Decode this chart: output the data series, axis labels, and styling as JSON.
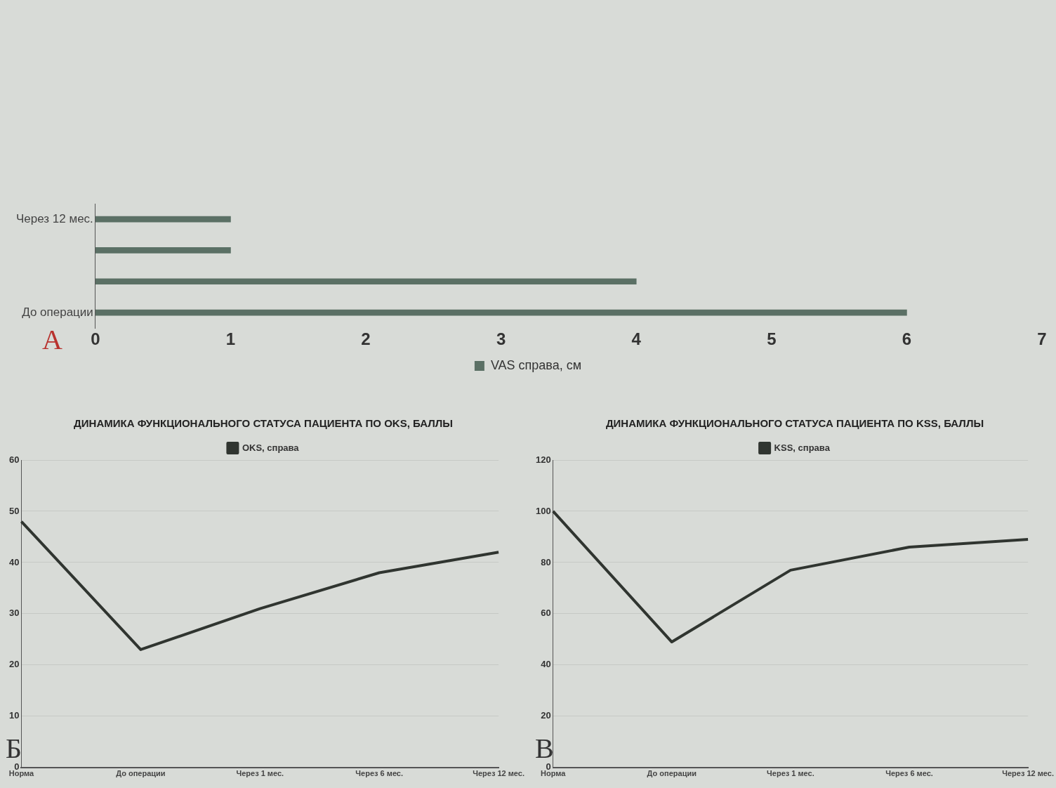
{
  "chart_data": [
    {
      "type": "bar",
      "orientation": "horizontal",
      "categories": [
        "Через 12 мес.",
        null,
        null,
        "До операции"
      ],
      "series": [
        {
          "name": "VAS справа, см",
          "color": "#5b7065",
          "values": [
            1,
            1,
            4,
            6
          ]
        }
      ],
      "xlim": [
        0,
        7
      ],
      "xticks": [
        0,
        1,
        2,
        3,
        4,
        5,
        6,
        7
      ],
      "grid": false,
      "legend": "bottom",
      "annotations": [
        "А"
      ]
    },
    {
      "type": "line",
      "title": "ДИНАМИКА ФУНКЦИОНАЛЬНОГО СТАТУСА ПАЦИЕНТА ПО OKS, БАЛЛЫ",
      "categories": [
        "Норма",
        "До операции",
        "Через 1 мес.",
        "Через 6 мес.",
        "Через 12 мес."
      ],
      "series": [
        {
          "name": "OKS, справа",
          "color": "#303530",
          "values": [
            48,
            23,
            31,
            38,
            42
          ]
        }
      ],
      "ylim": [
        0,
        60
      ],
      "yticks": [
        0,
        10,
        20,
        30,
        40,
        50,
        60
      ],
      "grid": "y",
      "legend": "top",
      "annotations": [
        "Б"
      ]
    },
    {
      "type": "line",
      "title": "ДИНАМИКА ФУНКЦИОНАЛЬНОГО СТАТУСА ПАЦИЕНТА ПО KSS, БАЛЛЫ",
      "categories": [
        "Норма",
        "До операции",
        "Через 1 мес.",
        "Через 6 мес.",
        "Через 12 мес."
      ],
      "series": [
        {
          "name": "KSS, справа",
          "color": "#303530",
          "values": [
            100,
            49,
            77,
            86,
            89
          ]
        }
      ],
      "ylim": [
        0,
        120
      ],
      "yticks": [
        0,
        20,
        40,
        60,
        80,
        100,
        120
      ],
      "grid": "y",
      "legend": "top",
      "annotations": [
        "В"
      ]
    }
  ]
}
